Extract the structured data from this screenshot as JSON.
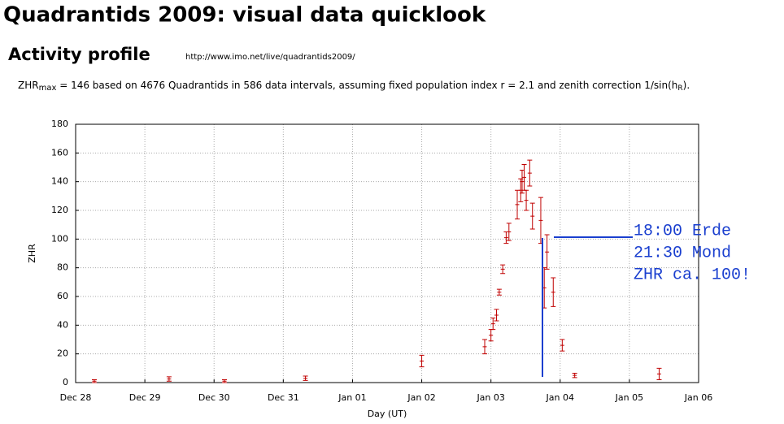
{
  "chart_data": {
    "type": "errorbar",
    "title": "Quadrantids 2009: visual data quicklook",
    "subtitle": "Activity profile",
    "url": "http://www.imo.net/live/quadrantids2009/",
    "description": [
      "ZHR",
      "max",
      " = 146 based on 4676 Quadrantids in 586 data intervals, assuming fixed population index r = 2.1 and zenith correction 1/sin(h",
      "R",
      ")."
    ],
    "xlabel": "Day (UT)",
    "ylabel": "ZHR",
    "annotations": [
      "18:00 Erde",
      "21:30 Mond",
      "ZHR ca. 100!"
    ],
    "color": "#c00000",
    "x": [
      0.27,
      1.35,
      2.15,
      3.32,
      5.0,
      5.91,
      6.0,
      6.03,
      6.08,
      6.12,
      6.17,
      6.22,
      6.26,
      6.38,
      6.43,
      6.45,
      6.48,
      6.51,
      6.56,
      6.6,
      6.72,
      6.77,
      6.81,
      6.9,
      7.03,
      7.21,
      8.43
    ],
    "values": [
      1,
      2.5,
      1,
      3,
      15,
      25,
      33,
      41,
      47,
      63,
      79,
      101,
      105,
      124,
      134,
      140,
      143,
      127,
      146,
      116,
      113,
      66,
      91,
      63,
      26,
      5,
      6
    ],
    "errors": [
      1,
      1.5,
      1,
      1.5,
      4,
      5,
      4,
      4,
      4,
      2,
      3,
      4,
      6,
      10,
      8,
      8,
      9,
      7,
      9,
      9,
      16,
      14,
      12,
      10,
      4,
      1.5,
      4
    ],
    "xlim": [
      0,
      9
    ],
    "xticks": [
      {
        "value": 0,
        "label": "Dec 28"
      },
      {
        "value": 1,
        "label": "Dec 29"
      },
      {
        "value": 2,
        "label": "Dec 30"
      },
      {
        "value": 3,
        "label": "Dec 31"
      },
      {
        "value": 4,
        "label": "Jan 01"
      },
      {
        "value": 5,
        "label": "Jan 02"
      },
      {
        "value": 6,
        "label": "Jan 03"
      },
      {
        "value": 7,
        "label": "Jan 04"
      },
      {
        "value": 8,
        "label": "Jan 05"
      },
      {
        "value": 9,
        "label": "Jan 06"
      }
    ],
    "ylim": [
      0,
      180
    ],
    "yticks": [
      0,
      20,
      40,
      60,
      80,
      100,
      120,
      140,
      160,
      180
    ],
    "grid": true
  }
}
